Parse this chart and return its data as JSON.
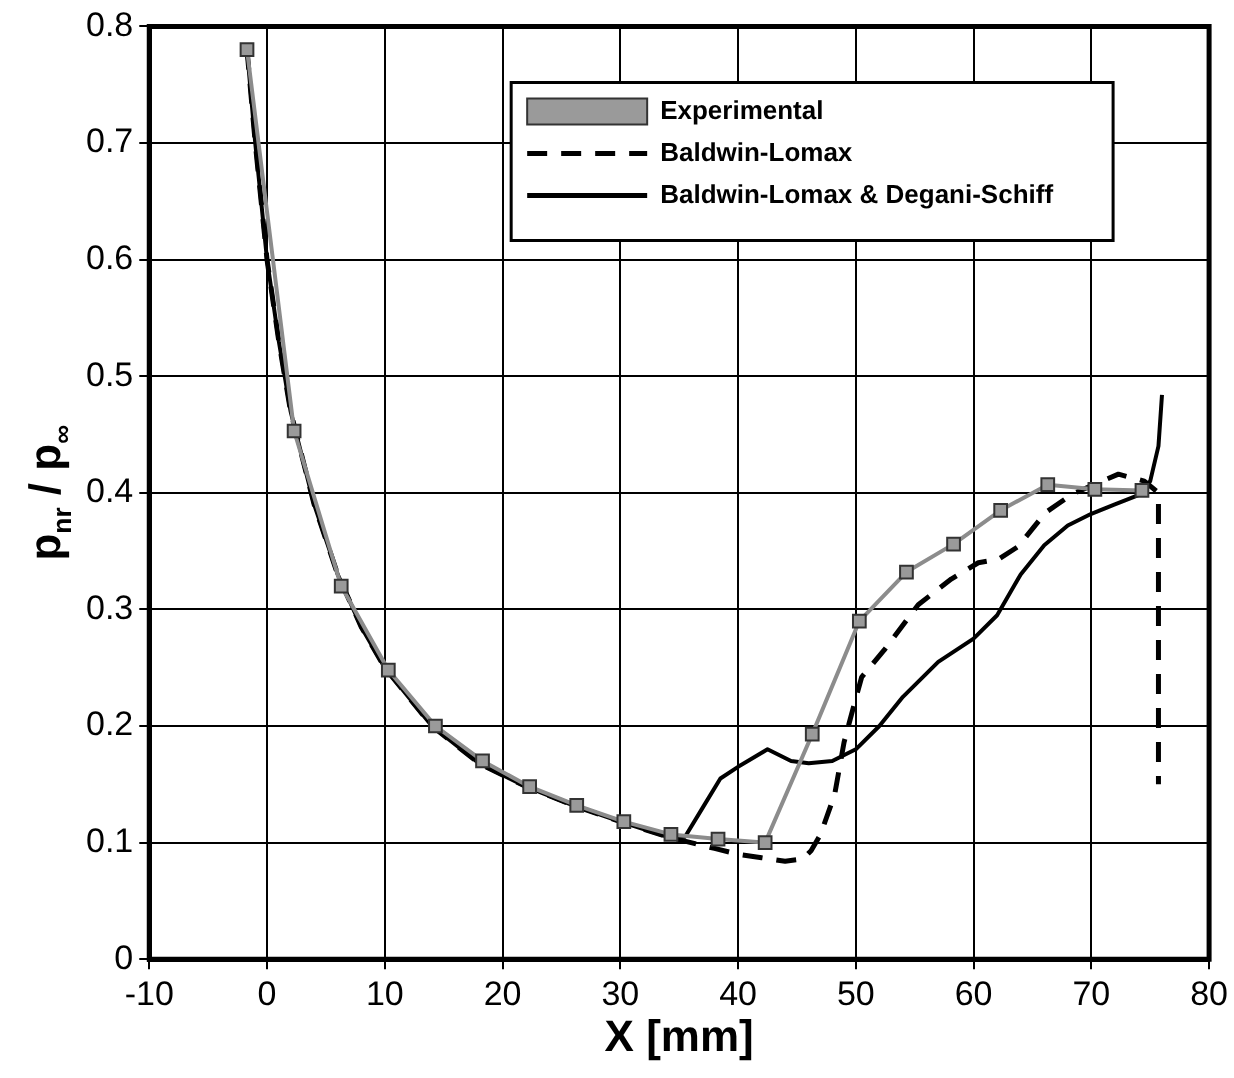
{
  "chart_data": {
    "type": "line",
    "xlabel": "X [mm]",
    "ylabel": "p$_{nr}$ / p$_{∞}$",
    "xlim": [
      -10,
      80
    ],
    "ylim": [
      0,
      0.8
    ],
    "xticks": [
      -10,
      0,
      10,
      20,
      30,
      40,
      50,
      60,
      70,
      80
    ],
    "yticks": [
      0,
      0.1,
      0.2,
      0.3,
      0.4,
      0.5,
      0.6,
      0.7,
      0.8
    ],
    "grid": true,
    "legend": "top right",
    "series": [
      {
        "name": "Experimental",
        "color": "#8c8c8c",
        "marker": "square",
        "line_style": "solid",
        "x": [
          -1.7,
          2.3,
          6.3,
          10.3,
          14.3,
          18.3,
          22.3,
          26.3,
          30.3,
          34.3,
          38.3,
          42.3,
          46.3,
          50.3,
          54.3,
          58.3,
          62.3,
          66.3,
          70.3,
          74.3
        ],
        "values": [
          0.78,
          0.453,
          0.32,
          0.248,
          0.2,
          0.17,
          0.148,
          0.132,
          0.118,
          0.107,
          0.103,
          0.1,
          0.193,
          0.29,
          0.332,
          0.356,
          0.385,
          0.407,
          0.403,
          0.402
        ]
      },
      {
        "name": "Baldwin-Lomax",
        "color": "#000000",
        "marker": "none",
        "line_style": "dashed",
        "x": [
          -1.7,
          -1,
          0,
          1,
          2,
          4,
          6,
          8,
          10,
          14,
          18,
          22,
          26,
          30,
          34,
          36,
          38,
          40,
          42,
          44,
          45.5,
          46.2,
          47,
          48.2,
          49,
          49.9,
          50.5,
          52.4,
          55.3,
          58.1,
          60.4,
          62.1,
          63.8,
          66.1,
          68.4,
          72.3,
          74.5,
          75.7,
          75.7
        ],
        "values": [
          0.78,
          0.7,
          0.6,
          0.53,
          0.47,
          0.39,
          0.33,
          0.285,
          0.25,
          0.2,
          0.168,
          0.148,
          0.132,
          0.118,
          0.105,
          0.1,
          0.095,
          0.09,
          0.087,
          0.084,
          0.086,
          0.093,
          0.107,
          0.141,
          0.186,
          0.22,
          0.242,
          0.265,
          0.304,
          0.326,
          0.34,
          0.343,
          0.354,
          0.383,
          0.399,
          0.416,
          0.41,
          0.4,
          0.15
        ]
      },
      {
        "name": "Baldwin-Lomax & Degani-Schiff",
        "color": "#000000",
        "marker": "none",
        "line_style": "solid",
        "x": [
          -1.7,
          -1,
          0,
          1,
          2,
          4,
          6,
          8,
          10,
          14,
          18,
          22,
          26,
          30,
          34,
          35.5,
          37,
          38.5,
          40,
          42.5,
          44.5,
          46,
          48,
          50,
          52,
          54,
          57,
          60,
          62,
          64,
          66,
          68,
          70,
          72,
          74,
          75,
          75.7,
          76
        ],
        "values": [
          0.78,
          0.7,
          0.6,
          0.53,
          0.47,
          0.39,
          0.33,
          0.285,
          0.25,
          0.2,
          0.168,
          0.148,
          0.132,
          0.118,
          0.105,
          0.105,
          0.13,
          0.155,
          0.165,
          0.18,
          0.17,
          0.168,
          0.17,
          0.18,
          0.2,
          0.225,
          0.255,
          0.275,
          0.295,
          0.33,
          0.355,
          0.372,
          0.382,
          0.39,
          0.398,
          0.41,
          0.44,
          0.484
        ]
      }
    ]
  }
}
